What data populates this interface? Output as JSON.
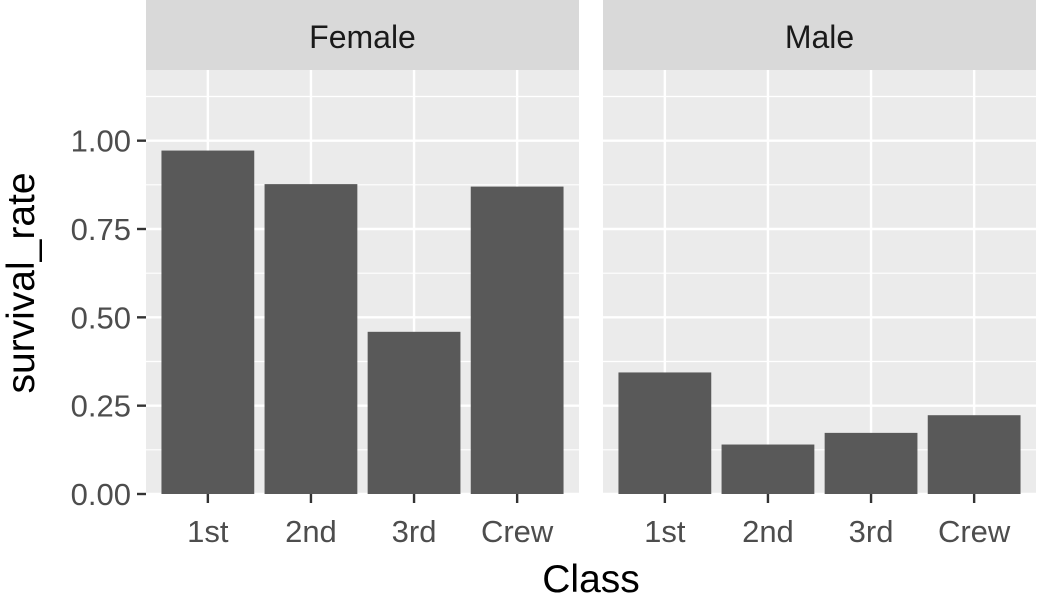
{
  "chart_data": {
    "type": "bar",
    "xlabel": "Class",
    "ylabel": "survival_rate",
    "ylim": [
      0,
      1.2
    ],
    "y_ticks": [
      0.0,
      0.25,
      0.5,
      0.75,
      1.0
    ],
    "y_tick_labels": [
      "0.00",
      "0.25",
      "0.50",
      "0.75",
      "1.00"
    ],
    "categories": [
      "1st",
      "2nd",
      "3rd",
      "Crew"
    ],
    "grid": true,
    "facets": [
      {
        "label": "Female",
        "values": [
          0.972,
          0.877,
          0.459,
          0.87
        ]
      },
      {
        "label": "Male",
        "values": [
          0.344,
          0.14,
          0.173,
          0.223
        ]
      }
    ],
    "colors": {
      "bar": "#595959",
      "panel_bg": "#ebebeb",
      "strip_bg": "#d9d9d9",
      "grid": "#ffffff",
      "tick": "#333333"
    }
  }
}
